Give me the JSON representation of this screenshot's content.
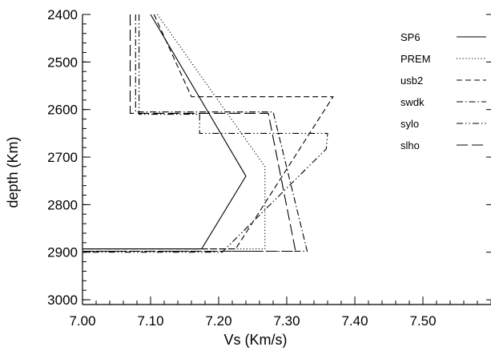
{
  "chart_data": {
    "type": "line",
    "title": "",
    "xlabel": "Vs (Km/s)",
    "ylabel": "depth (Km)",
    "xlim": [
      7.0,
      7.6
    ],
    "ylim": [
      3010,
      2400
    ],
    "y_inverted": true,
    "x_ticks": [
      7.0,
      7.1,
      7.2,
      7.3,
      7.4,
      7.5
    ],
    "x_tick_labels": [
      "7.00",
      "7.10",
      "7.20",
      "7.30",
      "7.40",
      "7.50"
    ],
    "y_ticks": [
      2400,
      2500,
      2600,
      2700,
      2800,
      2900,
      3000
    ],
    "y_tick_labels": [
      "2400",
      "2500",
      "2600",
      "2700",
      "2800",
      "2900",
      "3000"
    ],
    "grid": false,
    "legend_position": "top-right",
    "series": [
      {
        "name": "SP6",
        "dash": "solid",
        "points": [
          [
            7.1,
            2400
          ],
          [
            7.24,
            2740
          ],
          [
            7.175,
            2893
          ],
          [
            7.0,
            2893
          ]
        ]
      },
      {
        "name": "PREM",
        "dash": "dotted",
        "points": [
          [
            7.11,
            2400
          ],
          [
            7.268,
            2720
          ],
          [
            7.268,
            2893
          ],
          [
            7.0,
            2893
          ]
        ]
      },
      {
        "name": "usb2",
        "dash": "dashed",
        "points": [
          [
            7.105,
            2400
          ],
          [
            7.16,
            2573
          ],
          [
            7.368,
            2573
          ],
          [
            7.225,
            2893
          ],
          [
            7.0,
            2893
          ]
        ]
      },
      {
        "name": "swdk",
        "dash": "dashdot",
        "points": [
          [
            7.078,
            2400
          ],
          [
            7.078,
            2605
          ],
          [
            7.28,
            2605
          ],
          [
            7.33,
            2898
          ],
          [
            7.0,
            2898
          ]
        ]
      },
      {
        "name": "sylo",
        "dash": "dashdotdot",
        "points": [
          [
            7.083,
            2400
          ],
          [
            7.083,
            2610
          ],
          [
            7.172,
            2610
          ],
          [
            7.172,
            2650
          ],
          [
            7.36,
            2650
          ],
          [
            7.358,
            2683
          ],
          [
            7.205,
            2900
          ],
          [
            7.0,
            2900
          ]
        ]
      },
      {
        "name": "slho",
        "dash": "longdash",
        "points": [
          [
            7.07,
            2400
          ],
          [
            7.07,
            2608
          ],
          [
            7.273,
            2608
          ],
          [
            7.313,
            2898
          ],
          [
            7.0,
            2898
          ]
        ]
      }
    ]
  }
}
